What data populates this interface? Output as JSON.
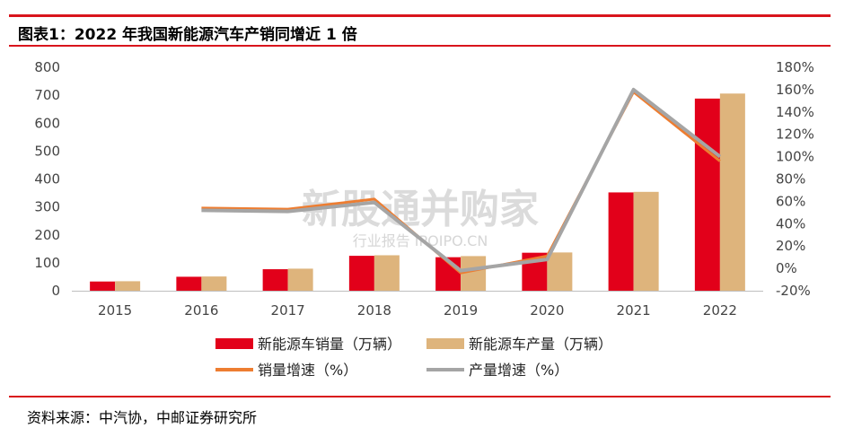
{
  "title": "图表1：2022 年我国新能源汽车产销同增近 1 倍",
  "source": "资料来源：中汽协，中邮证券研究所",
  "watermark": {
    "main": "新股通并购家",
    "sub": "行业报告 IPOIPO.CN"
  },
  "chart_data": {
    "type": "bar",
    "categories": [
      "2015",
      "2016",
      "2017",
      "2018",
      "2019",
      "2020",
      "2021",
      "2022"
    ],
    "series": [
      {
        "name": "新能源车销量（万辆）",
        "kind": "bar",
        "axis": "left",
        "color": "#e2001a",
        "values": [
          33,
          50,
          77,
          125,
          120,
          136,
          352,
          688
        ]
      },
      {
        "name": "新能源车产量（万辆）",
        "kind": "bar",
        "axis": "left",
        "color": "#deb47c",
        "values": [
          34,
          51,
          79,
          127,
          124,
          137,
          354,
          706
        ]
      },
      {
        "name": "销量增速（%）",
        "kind": "line",
        "axis": "right",
        "color": "#ed7d31",
        "values": [
          null,
          54,
          53,
          62,
          -4,
          11,
          158,
          96
        ]
      },
      {
        "name": "产量增速（%）",
        "kind": "line",
        "axis": "right",
        "color": "#a5a5a5",
        "values": [
          null,
          52,
          51,
          59,
          -2,
          8,
          160,
          100
        ]
      }
    ],
    "y_left": {
      "min": 0,
      "max": 800,
      "ticks": [
        0,
        100,
        200,
        300,
        400,
        500,
        600,
        700,
        800
      ]
    },
    "y_right": {
      "min": -20,
      "max": 180,
      "ticks": [
        -20,
        0,
        20,
        40,
        60,
        80,
        100,
        120,
        140,
        160,
        180
      ],
      "tick_labels": [
        "-20%",
        "0%",
        "20%",
        "40%",
        "60%",
        "80%",
        "100%",
        "120%",
        "140%",
        "160%",
        "180%"
      ]
    },
    "grid": false,
    "legend": "bottom"
  }
}
